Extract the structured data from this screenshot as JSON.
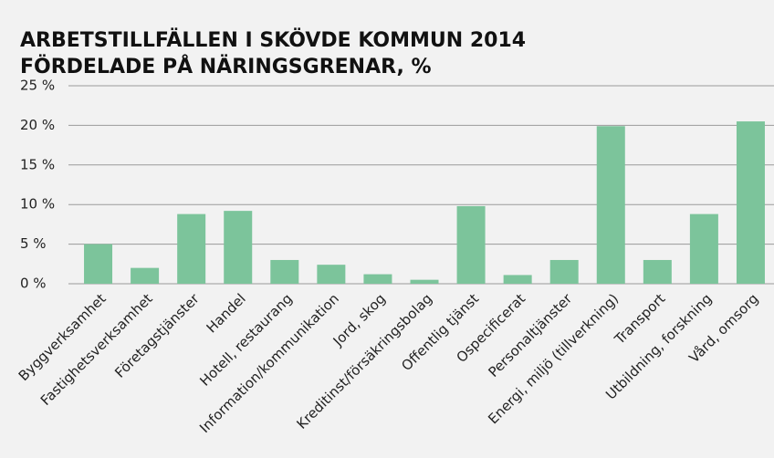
{
  "chart_data": {
    "type": "bar",
    "title": [
      "ARBETSTILLFÄLLEN I SKÖVDE KOMMUN 2014",
      "FÖRDELADE PÅ NÄRINGSGRENAR, %"
    ],
    "categories": [
      "Byggverksamhet",
      "Fastighetsverksamhet",
      "Företagstjänster",
      "Handel",
      "Hotell, restaurang",
      "Information/kommunikation",
      "Jord, skog",
      "Kreditinst/försäkringsbolag",
      "Offentlig tjänst",
      "Ospecificerat",
      "Personaltjänster",
      "Energi, miljö (tillverkning)",
      "Transport",
      "Utbildning, forskning",
      "Vård, omsorg"
    ],
    "values": [
      5.0,
      2.0,
      8.8,
      9.2,
      3.0,
      2.4,
      1.2,
      0.5,
      9.8,
      1.1,
      3.0,
      19.9,
      3.0,
      8.8,
      20.5
    ],
    "color": "#7cc49b",
    "ylim": [
      0,
      25
    ],
    "yticks": [
      {
        "value": 0,
        "label": "0 %"
      },
      {
        "value": 5,
        "label": "5 %"
      },
      {
        "value": 10,
        "label": "10 %"
      },
      {
        "value": 15,
        "label": "15 %"
      },
      {
        "value": 20,
        "label": "20 %"
      },
      {
        "value": 25,
        "label": "25 %"
      }
    ],
    "grid": true
  }
}
